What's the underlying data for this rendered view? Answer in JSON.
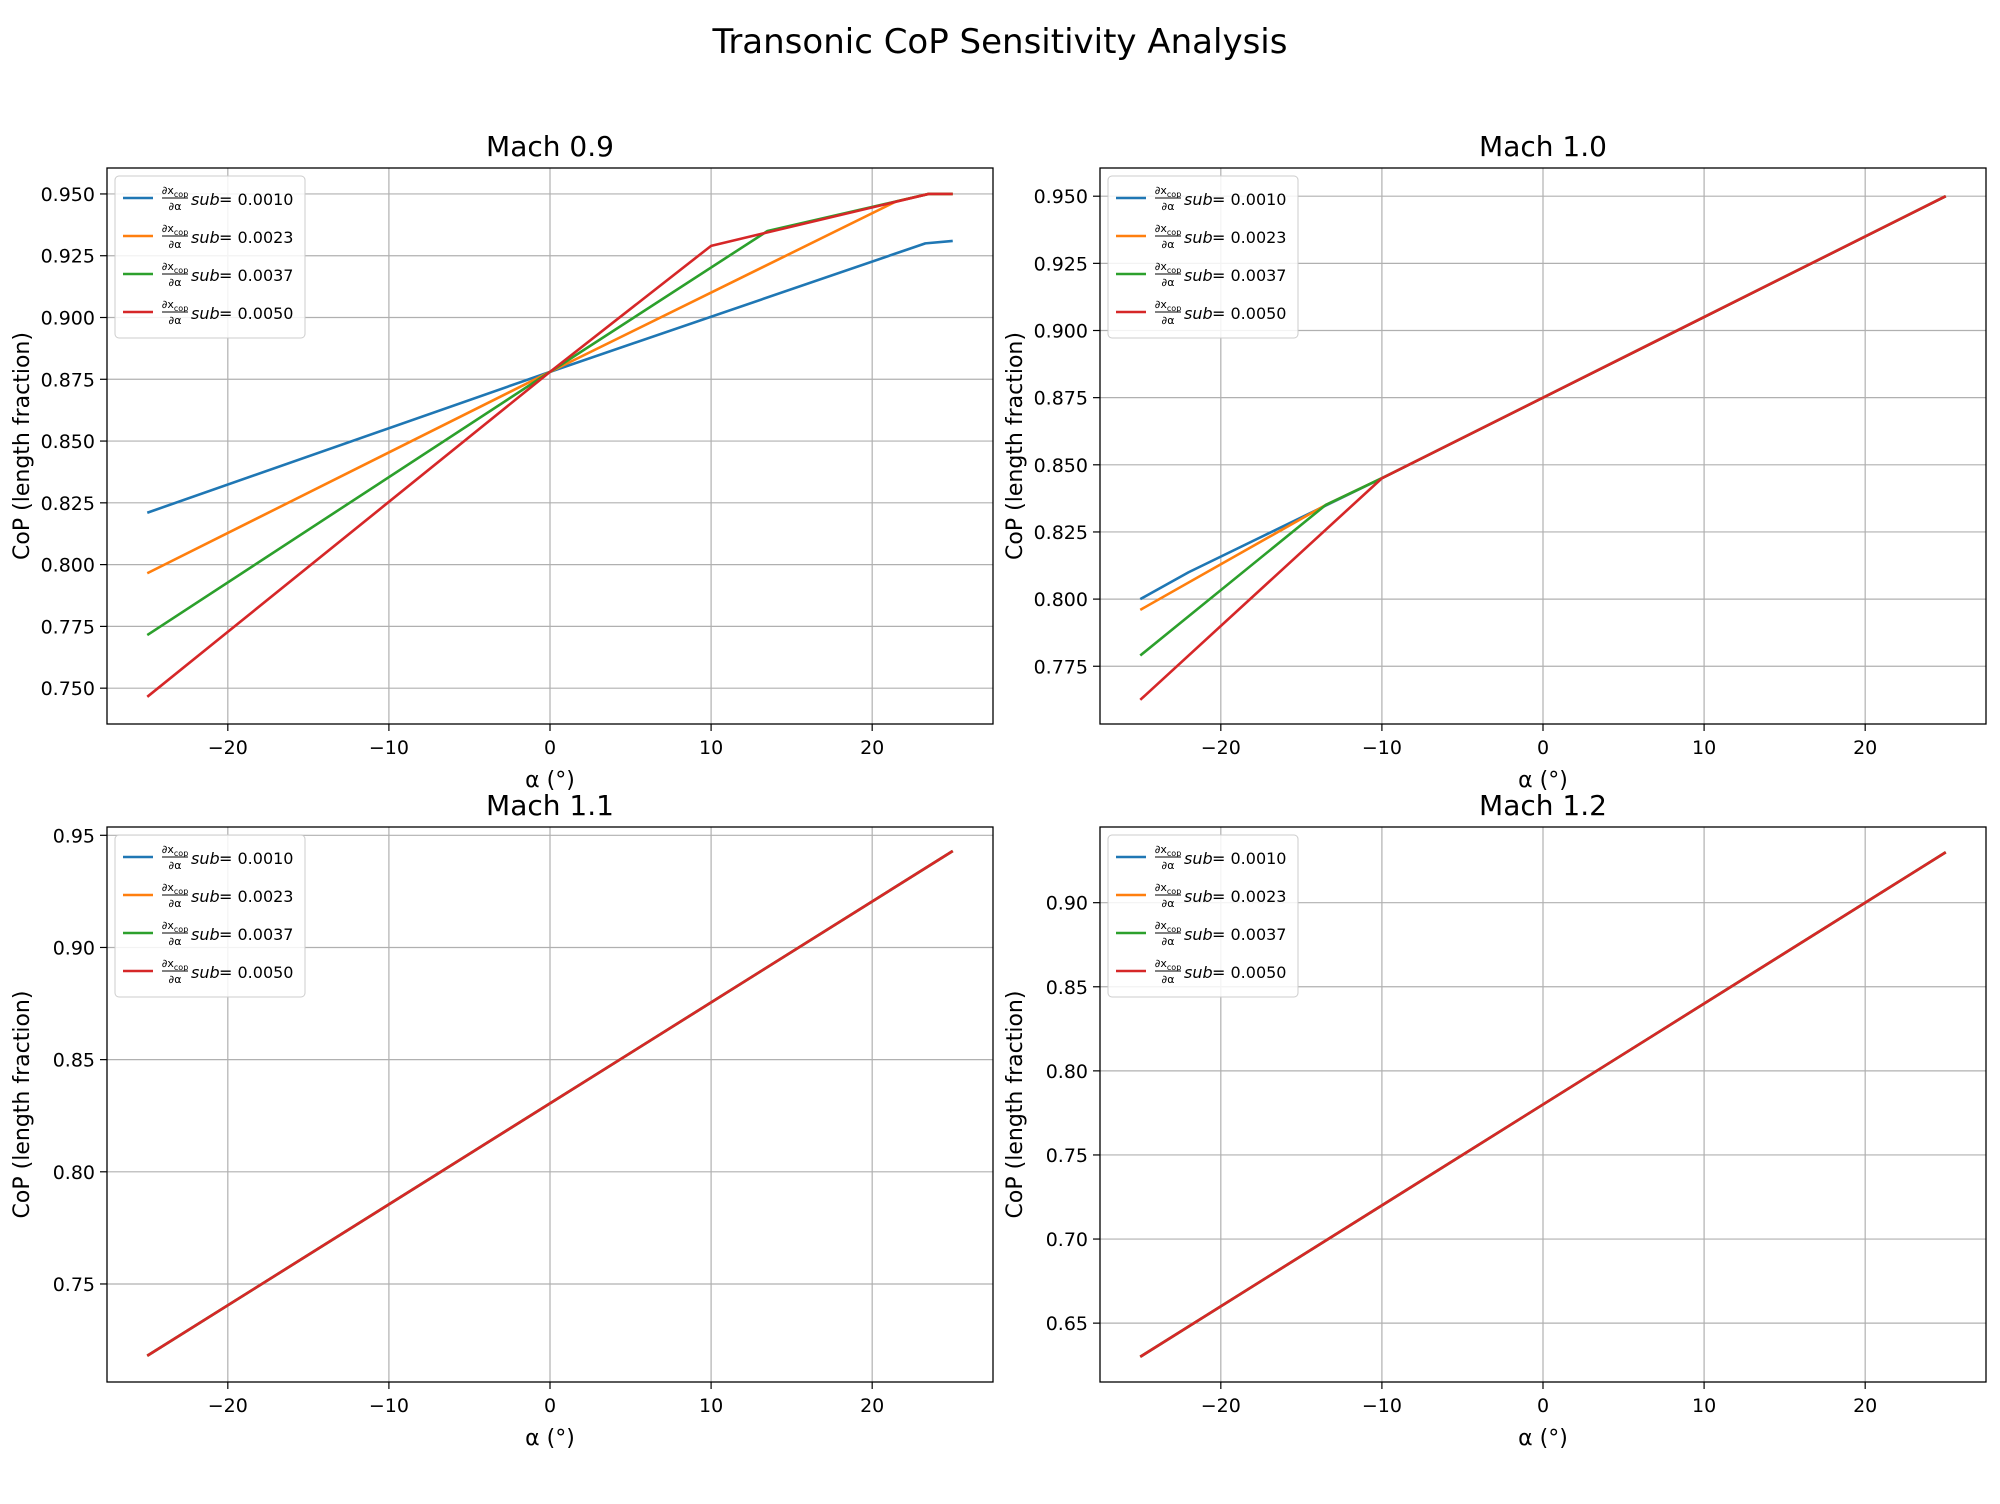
{
  "figure": {
    "title": "Transonic CoP Sensitivity Analysis"
  },
  "colors": {
    "series": [
      "#1f77b4",
      "#ff7f0e",
      "#2ca02c",
      "#d62728"
    ],
    "grid": "#b0b0b0",
    "axes": "#000000"
  },
  "legend": {
    "prefix_numerator": "∂x",
    "prefix_numerator_sub": "cop",
    "prefix_denominator": "∂α",
    "suffix": "sub = ",
    "values": [
      "0.0010",
      "0.0023",
      "0.0037",
      "0.0050"
    ],
    "placement": "upper-left"
  },
  "chart_data": [
    {
      "type": "line",
      "title": "Mach 0.9",
      "xlabel": "α (°)",
      "ylabel": "CoP (length fraction)",
      "xlim": [
        -27.5,
        27.5
      ],
      "ylim": [
        0.7355,
        0.9605
      ],
      "xticks": [
        -20,
        -10,
        0,
        10,
        20
      ],
      "xtick_labels": [
        "−20",
        "−10",
        "0",
        "10",
        "20"
      ],
      "yticks": [
        0.75,
        0.775,
        0.8,
        0.825,
        0.85,
        0.875,
        0.9,
        0.925,
        0.95
      ],
      "ytick_labels": [
        "0.750",
        "0.775",
        "0.800",
        "0.825",
        "0.850",
        "0.875",
        "0.900",
        "0.925",
        "0.950"
      ],
      "grid": true,
      "series": [
        {
          "name": "0.0010",
          "x": [
            -25,
            0,
            23.3,
            25
          ],
          "y": [
            0.821,
            0.878,
            0.93,
            0.931
          ]
        },
        {
          "name": "0.0023",
          "x": [
            -25,
            0,
            21.5,
            23.5,
            25
          ],
          "y": [
            0.7965,
            0.878,
            0.947,
            0.95,
            0.95
          ]
        },
        {
          "name": "0.0037",
          "x": [
            -25,
            0,
            13.5,
            23.5,
            25
          ],
          "y": [
            0.7715,
            0.878,
            0.935,
            0.95,
            0.95
          ]
        },
        {
          "name": "0.0050",
          "x": [
            -25,
            0,
            10,
            23.5,
            25
          ],
          "y": [
            0.7465,
            0.878,
            0.929,
            0.95,
            0.95
          ]
        }
      ]
    },
    {
      "type": "line",
      "title": "Mach 1.0",
      "xlabel": "α (°)",
      "ylabel": "CoP (length fraction)",
      "xlim": [
        -27.5,
        27.5
      ],
      "ylim": [
        0.7535,
        0.9605
      ],
      "xticks": [
        -20,
        -10,
        0,
        10,
        20
      ],
      "xtick_labels": [
        "−20",
        "−10",
        "0",
        "10",
        "20"
      ],
      "yticks": [
        0.775,
        0.8,
        0.825,
        0.85,
        0.875,
        0.9,
        0.925,
        0.95
      ],
      "ytick_labels": [
        "0.775",
        "0.800",
        "0.825",
        "0.850",
        "0.875",
        "0.900",
        "0.925",
        "0.950"
      ],
      "grid": true,
      "series": [
        {
          "name": "0.0010",
          "x": [
            -25,
            -22,
            -10,
            25
          ],
          "y": [
            0.8,
            0.81,
            0.845,
            0.95
          ]
        },
        {
          "name": "0.0023",
          "x": [
            -25,
            -13.5,
            -10,
            25
          ],
          "y": [
            0.796,
            0.835,
            0.845,
            0.95
          ]
        },
        {
          "name": "0.0037",
          "x": [
            -25,
            -13.5,
            -10,
            25
          ],
          "y": [
            0.779,
            0.835,
            0.845,
            0.95
          ]
        },
        {
          "name": "0.0050",
          "x": [
            -25,
            -10,
            25
          ],
          "y": [
            0.7625,
            0.845,
            0.95
          ]
        }
      ]
    },
    {
      "type": "line",
      "title": "Mach 1.1",
      "xlabel": "α (°)",
      "ylabel": "CoP (length fraction)",
      "xlim": [
        -27.5,
        27.5
      ],
      "ylim": [
        0.7063,
        0.9537
      ],
      "xticks": [
        -20,
        -10,
        0,
        10,
        20
      ],
      "xtick_labels": [
        "−20",
        "−10",
        "0",
        "10",
        "20"
      ],
      "yticks": [
        0.75,
        0.8,
        0.85,
        0.9,
        0.95
      ],
      "ytick_labels": [
        "0.75",
        "0.80",
        "0.85",
        "0.90",
        "0.95"
      ],
      "grid": true,
      "series": [
        {
          "name": "0.0010",
          "x": [
            -25,
            25
          ],
          "y": [
            0.718,
            0.943
          ]
        },
        {
          "name": "0.0023",
          "x": [
            -25,
            25
          ],
          "y": [
            0.718,
            0.943
          ]
        },
        {
          "name": "0.0037",
          "x": [
            -25,
            25
          ],
          "y": [
            0.718,
            0.943
          ]
        },
        {
          "name": "0.0050",
          "x": [
            -25,
            25
          ],
          "y": [
            0.718,
            0.943
          ]
        }
      ]
    },
    {
      "type": "line",
      "title": "Mach 1.2",
      "xlabel": "α (°)",
      "ylabel": "CoP (length fraction)",
      "xlim": [
        -27.5,
        27.5
      ],
      "ylim": [
        0.615,
        0.945
      ],
      "xticks": [
        -20,
        -10,
        0,
        10,
        20
      ],
      "xtick_labels": [
        "−20",
        "−10",
        "0",
        "10",
        "20"
      ],
      "yticks": [
        0.65,
        0.7,
        0.75,
        0.8,
        0.85,
        0.9
      ],
      "ytick_labels": [
        "0.65",
        "0.70",
        "0.75",
        "0.80",
        "0.85",
        "0.90"
      ],
      "grid": true,
      "series": [
        {
          "name": "0.0010",
          "x": [
            -25,
            25
          ],
          "y": [
            0.63,
            0.93
          ]
        },
        {
          "name": "0.0023",
          "x": [
            -25,
            25
          ],
          "y": [
            0.63,
            0.93
          ]
        },
        {
          "name": "0.0037",
          "x": [
            -25,
            25
          ],
          "y": [
            0.63,
            0.93
          ]
        },
        {
          "name": "0.0050",
          "x": [
            -25,
            25
          ],
          "y": [
            0.63,
            0.93
          ]
        }
      ]
    }
  ]
}
